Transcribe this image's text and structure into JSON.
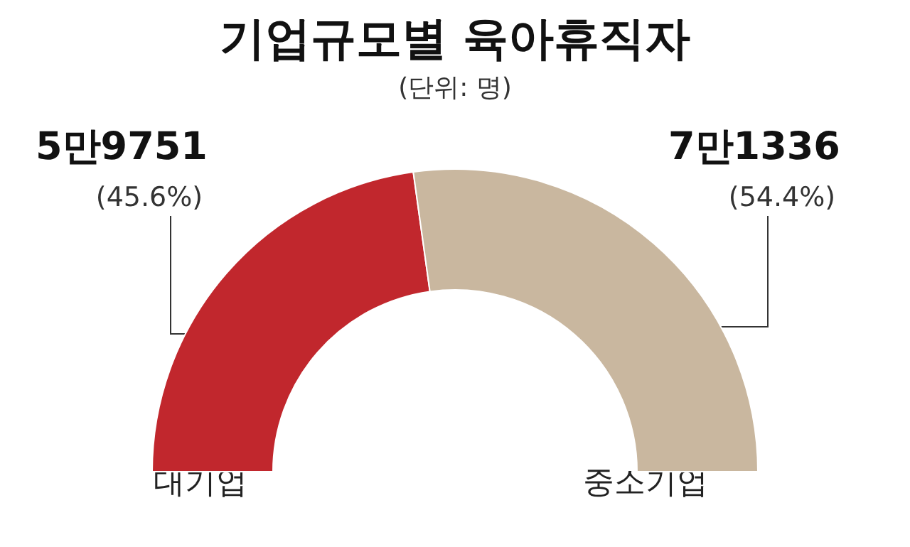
{
  "chart_data": {
    "type": "donut",
    "title": "기업규모별 육아휴직자",
    "subtitle": "(단위: 명)",
    "categories": [
      "대기업",
      "중소기업"
    ],
    "values": [
      45.6,
      54.4
    ],
    "colors": [
      "#c1272d",
      "#c9b79f"
    ],
    "value_labels": [
      "(45.6%)",
      "(54.4%)"
    ],
    "annotations": [
      "5만9751",
      "7만1336"
    ],
    "legend": false
  }
}
